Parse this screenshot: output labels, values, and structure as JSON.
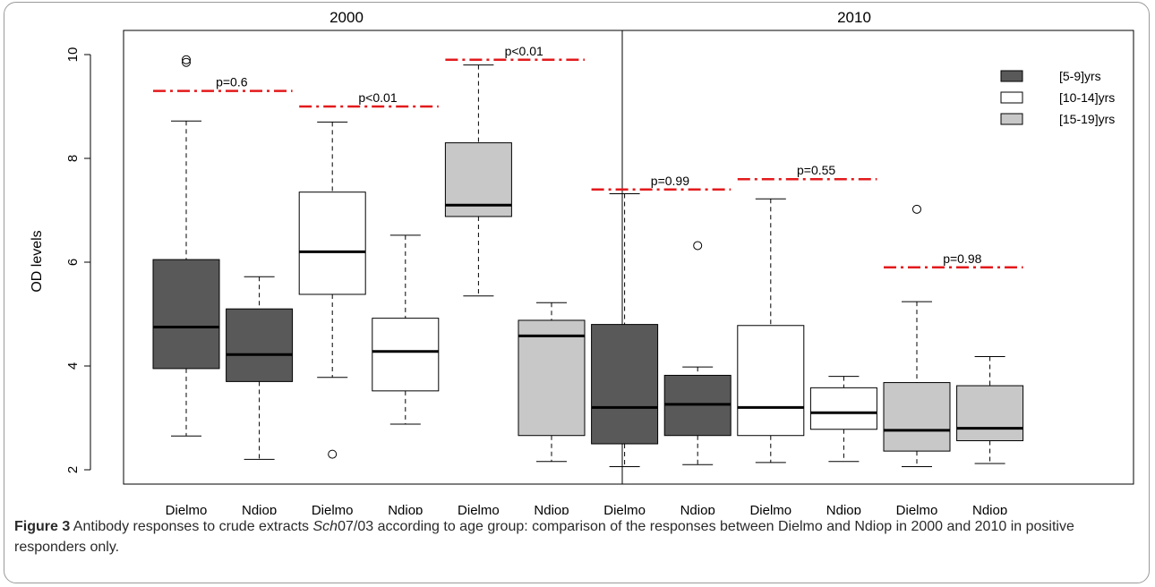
{
  "chart_data": {
    "type": "box",
    "ylabel": "OD levels",
    "ylim": [
      1.8,
      10.4
    ],
    "yticks": [
      "2",
      "4",
      "6",
      "8",
      "10"
    ],
    "panels": [
      "2000",
      "2010"
    ],
    "categories": [
      "Dielmo",
      "Ndiop",
      "Dielmo",
      "Ndiop",
      "Dielmo",
      "Ndiop",
      "Dielmo",
      "Ndiop",
      "Dielmo",
      "Ndiop",
      "Dielmo",
      "Ndiop"
    ],
    "legend": {
      "placement": "top-right",
      "entries": [
        {
          "label": "[5-9]yrs",
          "color": "#595959"
        },
        {
          "label": "[10-14]yrs",
          "color": "#ffffff"
        },
        {
          "label": "[15-19]yrs",
          "color": "#c8c8c8"
        }
      ]
    },
    "boxes": [
      {
        "panel": "2000",
        "site": "Dielmo",
        "group": "[5-9]yrs",
        "min": 2.65,
        "q1": 3.95,
        "median": 4.75,
        "q3": 6.05,
        "max": 8.72,
        "outliers": [
          9.85,
          9.9
        ]
      },
      {
        "panel": "2000",
        "site": "Ndiop",
        "group": "[5-9]yrs",
        "min": 2.2,
        "q1": 3.7,
        "median": 4.22,
        "q3": 5.1,
        "max": 5.72,
        "outliers": []
      },
      {
        "panel": "2000",
        "site": "Dielmo",
        "group": "[10-14]yrs",
        "min": 3.78,
        "q1": 5.38,
        "median": 6.2,
        "q3": 7.35,
        "max": 8.7,
        "outliers": [
          2.3
        ]
      },
      {
        "panel": "2000",
        "site": "Ndiop",
        "group": "[10-14]yrs",
        "min": 2.88,
        "q1": 3.52,
        "median": 4.28,
        "q3": 4.92,
        "max": 6.52,
        "outliers": []
      },
      {
        "panel": "2000",
        "site": "Dielmo",
        "group": "[15-19]yrs",
        "min": 5.35,
        "q1": 6.88,
        "median": 7.1,
        "q3": 8.3,
        "max": 9.8,
        "outliers": []
      },
      {
        "panel": "2000",
        "site": "Ndiop",
        "group": "[15-19]yrs",
        "min": 2.16,
        "q1": 2.66,
        "median": 4.58,
        "q3": 4.88,
        "max": 5.22,
        "outliers": []
      },
      {
        "panel": "2010",
        "site": "Dielmo",
        "group": "[5-9]yrs",
        "min": 2.06,
        "q1": 2.5,
        "median": 3.2,
        "q3": 4.8,
        "max": 7.32,
        "outliers": []
      },
      {
        "panel": "2010",
        "site": "Ndiop",
        "group": "[5-9]yrs",
        "min": 2.1,
        "q1": 2.66,
        "median": 3.26,
        "q3": 3.82,
        "max": 3.98,
        "outliers": [
          6.32
        ]
      },
      {
        "panel": "2010",
        "site": "Dielmo",
        "group": "[10-14]yrs",
        "min": 2.14,
        "q1": 2.66,
        "median": 3.2,
        "q3": 4.78,
        "max": 7.22,
        "outliers": []
      },
      {
        "panel": "2010",
        "site": "Ndiop",
        "group": "[10-14]yrs",
        "min": 2.16,
        "q1": 2.78,
        "median": 3.1,
        "q3": 3.58,
        "max": 3.8,
        "outliers": []
      },
      {
        "panel": "2010",
        "site": "Dielmo",
        "group": "[15-19]yrs",
        "min": 2.06,
        "q1": 2.36,
        "median": 2.76,
        "q3": 3.68,
        "max": 5.24,
        "outliers": [
          7.02
        ]
      },
      {
        "panel": "2010",
        "site": "Ndiop",
        "group": "[15-19]yrs",
        "min": 2.12,
        "q1": 2.56,
        "median": 2.8,
        "q3": 3.62,
        "max": 4.18,
        "outliers": []
      }
    ],
    "pvalues": [
      {
        "label": "p=0.6",
        "y": 9.3,
        "pair": [
          0,
          1
        ]
      },
      {
        "label": "p<0.01",
        "y": 9.0,
        "pair": [
          2,
          3
        ]
      },
      {
        "label": "p<0.01",
        "y": 9.9,
        "pair": [
          4,
          5
        ]
      },
      {
        "label": "p=0.99",
        "y": 7.4,
        "pair": [
          6,
          7
        ]
      },
      {
        "label": "p=0.55",
        "y": 7.6,
        "pair": [
          8,
          9
        ]
      },
      {
        "label": "p=0.98",
        "y": 5.9,
        "pair": [
          10,
          11
        ]
      }
    ],
    "colors": {
      "pvalue_line": "#e31a1c"
    }
  },
  "caption": {
    "label": "Figure 3",
    "text_before": " Antibody responses to crude extracts ",
    "italic": "Sch",
    "text_after": "07/03 according to age group: comparison of the responses between Dielmo and Ndiop in 2000 and 2010 in positive responders only."
  }
}
